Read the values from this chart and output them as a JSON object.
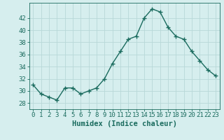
{
  "x": [
    0,
    1,
    2,
    3,
    4,
    5,
    6,
    7,
    8,
    9,
    10,
    11,
    12,
    13,
    14,
    15,
    16,
    17,
    18,
    19,
    20,
    21,
    22,
    23
  ],
  "y": [
    31,
    29.5,
    29,
    28.5,
    30.5,
    30.5,
    29.5,
    30,
    30.5,
    32,
    34.5,
    36.5,
    38.5,
    39,
    42,
    43.5,
    43,
    40.5,
    39,
    38.5,
    36.5,
    35,
    33.5,
    32.5
  ],
  "xlabel": "Humidex (Indice chaleur)",
  "ylim": [
    27,
    44.5
  ],
  "xlim": [
    -0.5,
    23.5
  ],
  "yticks": [
    28,
    30,
    32,
    34,
    36,
    38,
    40,
    42
  ],
  "xticks": [
    0,
    1,
    2,
    3,
    4,
    5,
    6,
    7,
    8,
    9,
    10,
    11,
    12,
    13,
    14,
    15,
    16,
    17,
    18,
    19,
    20,
    21,
    22,
    23
  ],
  "line_color": "#1a6b5e",
  "marker": "+",
  "bg_color": "#d6eeee",
  "grid_color": "#b8d8d8",
  "tick_fontsize": 6.5,
  "xlabel_fontsize": 7.5,
  "line_width": 1.0,
  "marker_size": 4,
  "marker_edge_width": 1.0
}
